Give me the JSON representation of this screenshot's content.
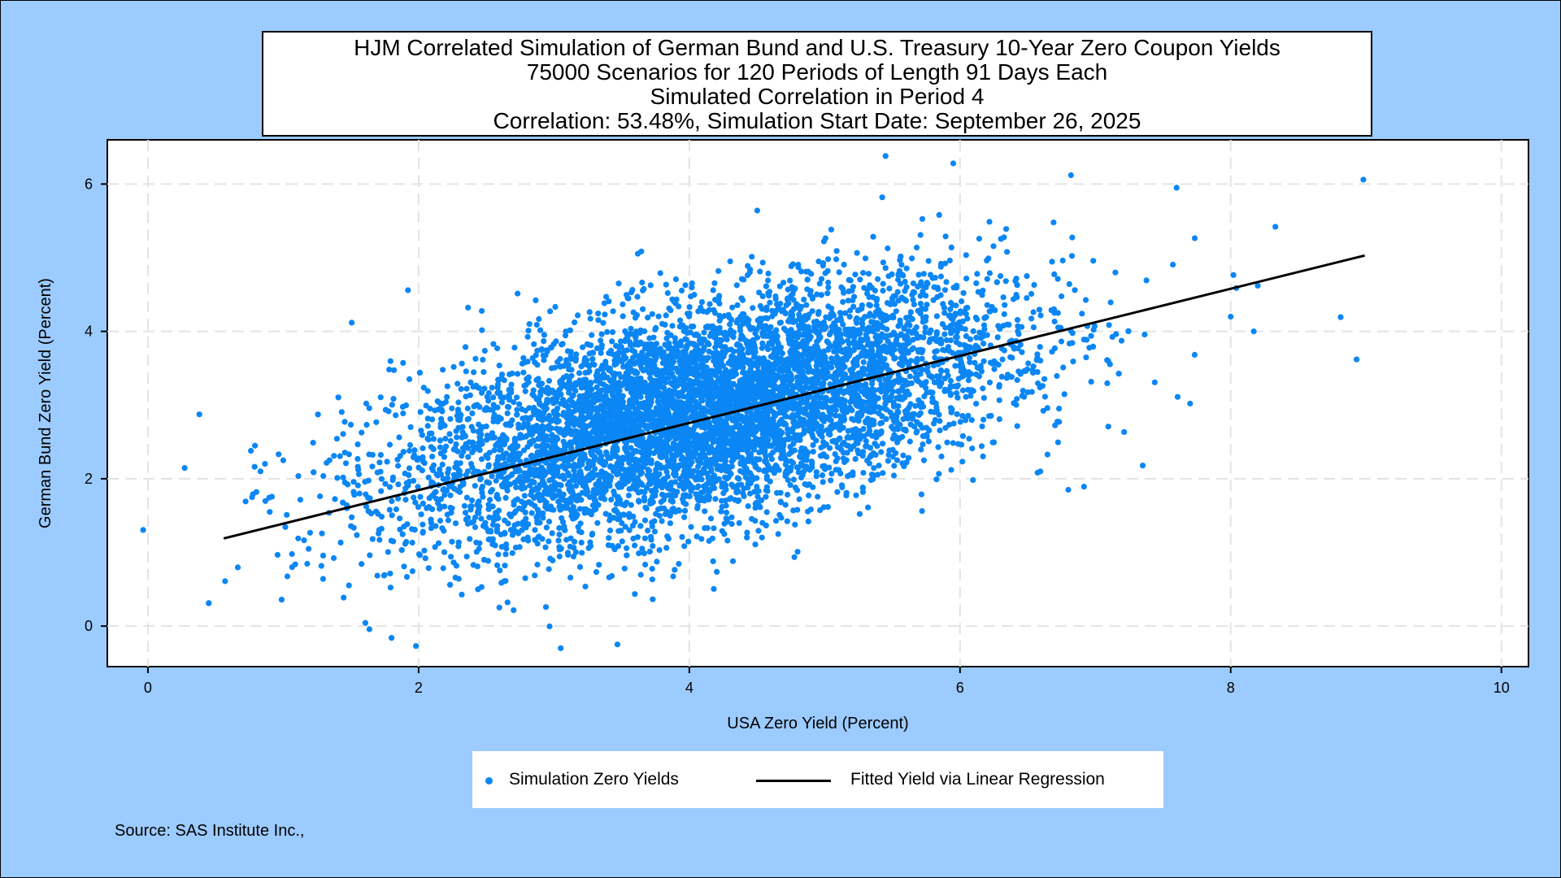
{
  "chart_data": {
    "type": "scatter",
    "title_lines": [
      "HJM Correlated Simulation of German Bund and U.S. Treasury 10-Year Zero Coupon Yields",
      "75000 Scenarios for 120 Periods of Length 91 Days Each",
      "Simulated Correlation in Period 4",
      "Correlation: 53.48%,  Simulation Start Date: September 26, 2025"
    ],
    "xlabel": "USA Zero Yield (Percent)",
    "ylabel": "German Bund Zero Yield (Percent)",
    "xlim": [
      -0.3,
      10.2
    ],
    "ylim": [
      -0.55,
      6.6
    ],
    "xticks": [
      0,
      2,
      4,
      6,
      8,
      10
    ],
    "yticks": [
      0,
      2,
      4,
      6
    ],
    "grid": true,
    "series": [
      {
        "name": "Simulation Zero Yields",
        "kind": "scatter",
        "color": "#0b86f5",
        "distribution": {
          "n_points_simulated": 75000,
          "x_mean": 4.1,
          "x_sd": 1.1,
          "y_mean": 2.9,
          "y_sd": 0.85,
          "correlation": 0.5348
        },
        "sample_points": [
          {
            "x": 0.57,
            "y": 0.61
          },
          {
            "x": 0.77,
            "y": 1.75
          },
          {
            "x": 1.8,
            "y": -0.16
          },
          {
            "x": 1.98,
            "y": -0.27
          },
          {
            "x": 3.05,
            "y": -0.3
          },
          {
            "x": 5.45,
            "y": 6.38
          },
          {
            "x": 5.95,
            "y": 6.28
          },
          {
            "x": 6.82,
            "y": 6.12
          },
          {
            "x": 7.6,
            "y": 5.95
          },
          {
            "x": 8.33,
            "y": 5.42
          },
          {
            "x": 8.98,
            "y": 6.06
          },
          {
            "x": 8.93,
            "y": 3.62
          },
          {
            "x": 8.2,
            "y": 4.62
          },
          {
            "x": 7.35,
            "y": 2.18
          },
          {
            "x": 6.8,
            "y": 1.85
          },
          {
            "x": 7.7,
            "y": 3.02
          },
          {
            "x": 8.0,
            "y": 4.2
          },
          {
            "x": 8.17,
            "y": 4.0
          },
          {
            "x": 1.0,
            "y": 2.25
          },
          {
            "x": 0.9,
            "y": 1.55
          }
        ]
      },
      {
        "name": "Fitted Yield via Linear Regression",
        "kind": "line",
        "color": "#000000",
        "x": [
          0.56,
          8.99
        ],
        "y": [
          1.19,
          5.03
        ]
      }
    ],
    "legend_position": "bottom-center"
  },
  "source": "Source: SAS Institute Inc.,"
}
